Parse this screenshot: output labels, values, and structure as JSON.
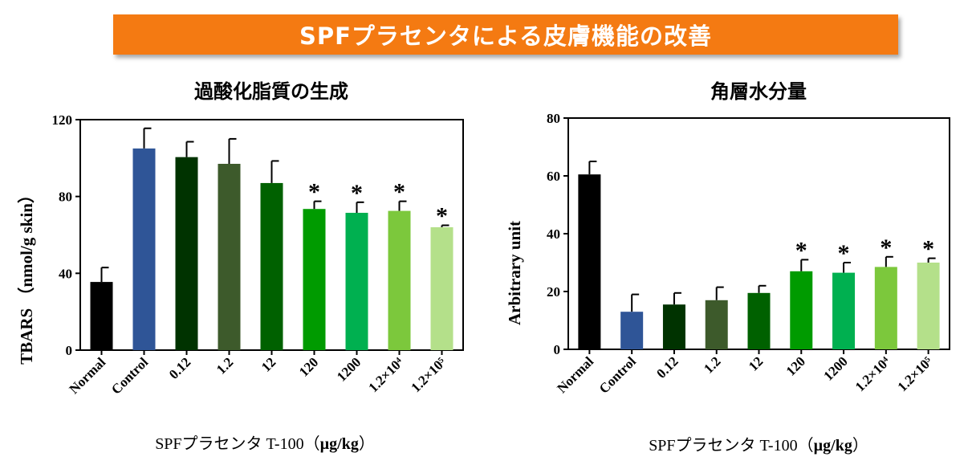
{
  "banner": {
    "title": "SPFプラセンタによる皮膚機能の改善"
  },
  "chart_data": [
    {
      "type": "bar",
      "title": "過酸化脂質の生成",
      "ylabel": "TBARS （nmol/g skin）",
      "xlabel_main": "SPFプラセンタ T-100（",
      "xlabel_unit": "µg/kg",
      "xlabel_end": "）",
      "categories": [
        "Normal",
        "Control",
        "0.12",
        "1.2",
        "12",
        "120",
        "1200",
        "1.2×10⁴",
        "1.2×10⁵"
      ],
      "values": [
        35.5,
        105,
        100.5,
        97,
        87,
        73.5,
        71.5,
        72.5,
        64
      ],
      "errors": [
        7.5,
        10.5,
        8,
        13,
        11.5,
        4,
        5.5,
        5,
        1
      ],
      "significant": [
        false,
        false,
        false,
        false,
        false,
        true,
        true,
        true,
        true
      ],
      "significance_marker": "*",
      "colors": [
        "#000000",
        "#2f5597",
        "#003300",
        "#3d5a2b",
        "#006100",
        "#009b00",
        "#00b050",
        "#7cc83c",
        "#b4e08a"
      ],
      "ylim": [
        0,
        120
      ],
      "yticks": [
        "0",
        "40",
        "80",
        "120"
      ]
    },
    {
      "type": "bar",
      "title": "角層水分量",
      "ylabel": "Arbitrary unit",
      "xlabel_main": "SPFプラセンタ T-100（",
      "xlabel_unit": "µg/kg",
      "xlabel_end": "）",
      "categories": [
        "Normal",
        "Control",
        "0.12",
        "1.2",
        "12",
        "120",
        "1200",
        "1.2×10⁴",
        "1.2×10⁵"
      ],
      "values": [
        60.5,
        13,
        15.5,
        17,
        19.5,
        27,
        26.5,
        28.5,
        30
      ],
      "errors": [
        4.5,
        6,
        4,
        4.5,
        2.5,
        4,
        3.5,
        3.5,
        1.5
      ],
      "significant": [
        false,
        false,
        false,
        false,
        false,
        true,
        true,
        true,
        true
      ],
      "significance_marker": "*",
      "colors": [
        "#000000",
        "#2f5597",
        "#003300",
        "#3d5a2b",
        "#006100",
        "#009b00",
        "#00b050",
        "#7cc83c",
        "#b4e08a"
      ],
      "ylim": [
        0,
        80
      ],
      "yticks": [
        "0",
        "20",
        "40",
        "60",
        "80"
      ]
    }
  ]
}
